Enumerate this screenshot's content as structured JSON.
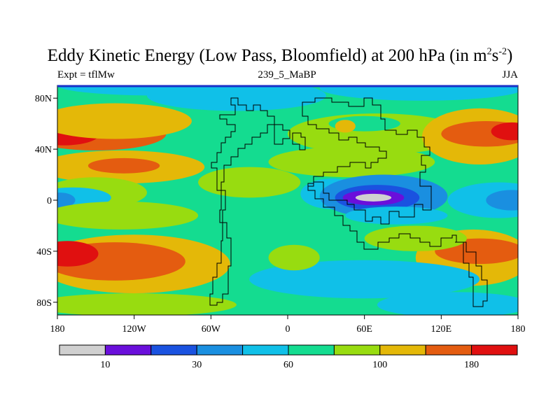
{
  "figure": {
    "title_main": "Eddy Kinetic Energy (Low Pass, Bloomfield) at 200 hPa (in m",
    "title_units_sup1": "2",
    "title_units_mid": "s",
    "title_units_sup2": "-2",
    "title_close": ")",
    "subtitle_left": "Expt = tflMw",
    "subtitle_center": "239_5_MaBP",
    "subtitle_right": "JJA"
  },
  "chart_data": {
    "type": "heatmap",
    "title": "Eddy Kinetic Energy (Low Pass, Bloomfield) at 200 hPa (in m^2 s^-2)",
    "xlabel": "",
    "ylabel": "",
    "xlim": [
      -180,
      180
    ],
    "ylim": [
      -90,
      90
    ],
    "x_ticks": [
      {
        "value": -180,
        "label": "180"
      },
      {
        "value": -120,
        "label": "120W"
      },
      {
        "value": -60,
        "label": "60W"
      },
      {
        "value": 0,
        "label": "0"
      },
      {
        "value": 60,
        "label": "60E"
      },
      {
        "value": 120,
        "label": "120E"
      },
      {
        "value": 180,
        "label": "180"
      }
    ],
    "y_ticks": [
      {
        "value": 80,
        "label": "80N"
      },
      {
        "value": 40,
        "label": "40N"
      },
      {
        "value": 0,
        "label": "0"
      },
      {
        "value": -40,
        "label": "40S"
      },
      {
        "value": -80,
        "label": "80S"
      }
    ],
    "colorbar": {
      "colors": [
        "#d0d0d0",
        "#6a0fdb",
        "#1a52e0",
        "#1a8fe0",
        "#10c0e8",
        "#14dc90",
        "#98dc10",
        "#e4b808",
        "#e45c10",
        "#e01010"
      ],
      "level_labels": [
        "10",
        "30",
        "60",
        "100",
        "180"
      ],
      "label_after_box": [
        0,
        2,
        4,
        6,
        8
      ]
    },
    "background_level": 5,
    "fields": [
      {
        "lon": -150,
        "lat": 52,
        "rlon": 55,
        "rlat": 13,
        "level": 8
      },
      {
        "lon": -175,
        "lat": 52,
        "rlon": 28,
        "rlat": 9,
        "level": 9
      },
      {
        "lon": -135,
        "lat": 62,
        "rlon": 60,
        "rlat": 14,
        "level": 7
      },
      {
        "lon": -130,
        "lat": 26,
        "rlon": 65,
        "rlat": 13,
        "level": 7
      },
      {
        "lon": -128,
        "lat": 27,
        "rlon": 28,
        "rlat": 6,
        "level": 8
      },
      {
        "lon": -150,
        "lat": 6,
        "rlon": 40,
        "rlat": 12,
        "level": 6
      },
      {
        "lon": -168,
        "lat": 2,
        "rlon": 30,
        "rlat": 8,
        "level": 4
      },
      {
        "lon": -178,
        "lat": 0,
        "rlon": 12,
        "rlat": 6,
        "level": 3
      },
      {
        "lon": -130,
        "lat": -12,
        "rlon": 60,
        "rlat": 11,
        "level": 6
      },
      {
        "lon": -120,
        "lat": -50,
        "rlon": 75,
        "rlat": 23,
        "level": 7
      },
      {
        "lon": -135,
        "lat": -48,
        "rlon": 55,
        "rlat": 15,
        "level": 8
      },
      {
        "lon": -172,
        "lat": -42,
        "rlon": 24,
        "rlat": 10,
        "level": 9
      },
      {
        "lon": -120,
        "lat": -82,
        "rlon": 80,
        "rlat": 9,
        "level": 6
      },
      {
        "lon": -100,
        "lat": 90,
        "rlon": 80,
        "rlat": 8,
        "level": 4
      },
      {
        "lon": -40,
        "lat": 82,
        "rlon": 70,
        "rlat": 12,
        "level": 4
      },
      {
        "lon": 70,
        "lat": 52,
        "rlon": 70,
        "rlat": 16,
        "level": 6
      },
      {
        "lon": 60,
        "lat": 60,
        "rlon": 28,
        "rlat": 6,
        "level": 5
      },
      {
        "lon": 45,
        "lat": 58,
        "rlon": 8,
        "rlat": 5,
        "level": 7
      },
      {
        "lon": 50,
        "lat": 30,
        "rlon": 65,
        "rlat": 12,
        "level": 6
      },
      {
        "lon": 105,
        "lat": 88,
        "rlon": 80,
        "rlat": 10,
        "level": 4
      },
      {
        "lon": 150,
        "lat": 50,
        "rlon": 45,
        "rlat": 22,
        "level": 7
      },
      {
        "lon": 155,
        "lat": 52,
        "rlon": 35,
        "rlat": 10,
        "level": 8
      },
      {
        "lon": 175,
        "lat": 54,
        "rlon": 16,
        "rlat": 7,
        "level": 9
      },
      {
        "lon": -30,
        "lat": 14,
        "rlon": 40,
        "rlat": 12,
        "level": 6
      },
      {
        "lon": 165,
        "lat": 0,
        "rlon": 40,
        "rlat": 14,
        "level": 4
      },
      {
        "lon": 175,
        "lat": 0,
        "rlon": 20,
        "rlat": 8,
        "level": 3
      },
      {
        "lon": 35,
        "lat": 5,
        "rlon": 25,
        "rlat": 12,
        "level": 4
      },
      {
        "lon": 75,
        "lat": 3,
        "rlon": 50,
        "rlat": 17,
        "level": 3
      },
      {
        "lon": 70,
        "lat": 2,
        "rlon": 33,
        "rlat": 10,
        "level": 2
      },
      {
        "lon": 67,
        "lat": 2,
        "rlon": 24,
        "rlat": 6,
        "level": 1
      },
      {
        "lon": 67,
        "lat": 2,
        "rlon": 14,
        "rlat": 3,
        "level": 0
      },
      {
        "lon": 145,
        "lat": -45,
        "rlon": 45,
        "rlat": 22,
        "level": 7
      },
      {
        "lon": 150,
        "lat": -40,
        "rlon": 35,
        "rlat": 10,
        "level": 8
      },
      {
        "lon": 100,
        "lat": -30,
        "rlon": 40,
        "rlat": 10,
        "level": 6
      },
      {
        "lon": 85,
        "lat": -12,
        "rlon": 40,
        "rlat": 7,
        "level": 4
      },
      {
        "lon": 60,
        "lat": -62,
        "rlon": 90,
        "rlat": 15,
        "level": 4
      },
      {
        "lon": 130,
        "lat": -82,
        "rlon": 60,
        "rlat": 10,
        "level": 4
      },
      {
        "lon": 5,
        "lat": -45,
        "rlon": 20,
        "rlat": 10,
        "level": 6
      }
    ]
  }
}
